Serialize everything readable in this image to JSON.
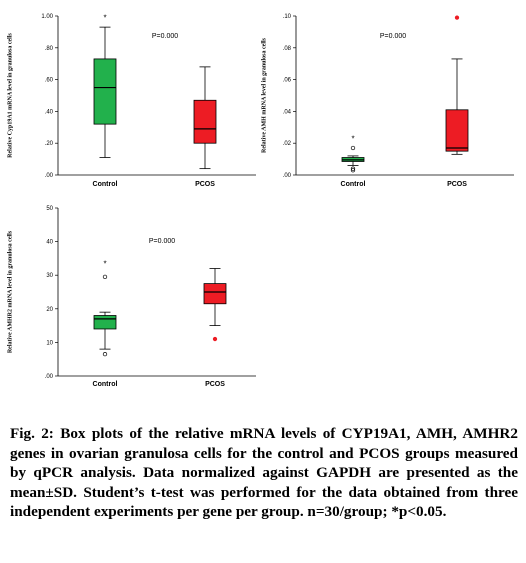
{
  "chart_data": [
    {
      "type": "box",
      "ylabel": "Relative Cyp19A1 mRNA level in granulosa cells",
      "ylim": [
        0,
        1.0
      ],
      "yticks": [
        0.0,
        0.2,
        0.4,
        0.6,
        0.8,
        1.0
      ],
      "ytick_labels": [
        ".00",
        ".20",
        ".40",
        ".60",
        ".80",
        "1.00"
      ],
      "annotation": "P=0.000",
      "categories": [
        "Control",
        "PCOS"
      ],
      "boxes": [
        {
          "name": "Control",
          "color": "#22b14c",
          "whisker_low": 0.11,
          "q1": 0.32,
          "median": 0.55,
          "q3": 0.73,
          "whisker_high": 0.93,
          "outliers": [],
          "extremes": [
            0.99
          ]
        },
        {
          "name": "PCOS",
          "color": "#ed1c24",
          "whisker_low": 0.04,
          "q1": 0.2,
          "median": 0.29,
          "q3": 0.47,
          "whisker_high": 0.68,
          "outliers": [],
          "extremes": []
        }
      ]
    },
    {
      "type": "box",
      "ylabel": "Relative AMH mRNA level in granulosa cells",
      "ylim": [
        0,
        0.1
      ],
      "yticks": [
        0.0,
        0.02,
        0.04,
        0.06,
        0.08,
        0.1
      ],
      "ytick_labels": [
        ".00",
        ".02",
        ".04",
        ".06",
        ".08",
        ".10"
      ],
      "annotation": "P=0.000",
      "categories": [
        "Control",
        "PCOS"
      ],
      "boxes": [
        {
          "name": "Control",
          "color": "#22b14c",
          "whisker_low": 0.006,
          "q1": 0.0085,
          "median": 0.0095,
          "q3": 0.011,
          "whisker_high": 0.012,
          "outliers": [
            0.017,
            0.004,
            0.003
          ],
          "extremes": [
            0.023
          ]
        },
        {
          "name": "PCOS",
          "color": "#ed1c24",
          "whisker_low": 0.013,
          "q1": 0.015,
          "median": 0.017,
          "q3": 0.041,
          "whisker_high": 0.073,
          "outliers": [
            0.099
          ],
          "extremes": []
        }
      ]
    },
    {
      "type": "box",
      "ylabel": "Relative AMHR2 mRNA level in granulosa cells",
      "ylim": [
        0,
        50
      ],
      "yticks": [
        0,
        10,
        20,
        30,
        40,
        50
      ],
      "ytick_labels": [
        ".00",
        "10",
        "20",
        "30",
        "40",
        "50"
      ],
      "annotation": "P=0.000",
      "categories": [
        "Control",
        "PCOS"
      ],
      "boxes": [
        {
          "name": "Control",
          "color": "#22b14c",
          "whisker_low": 8,
          "q1": 14,
          "median": 17,
          "q3": 18,
          "whisker_high": 19,
          "outliers": [
            6.5,
            29.5
          ],
          "extremes": [
            33.5
          ]
        },
        {
          "name": "PCOS",
          "color": "#ed1c24",
          "whisker_low": 15,
          "q1": 21.5,
          "median": 25,
          "q3": 27.5,
          "whisker_high": 32,
          "outliers": [
            11
          ],
          "extremes": []
        }
      ]
    }
  ],
  "caption": {
    "lead": "Fig. 2:",
    "text": "Box plots of the relative mRNA levels of CYP19A1, AMH, AMHR2 genes in ovarian granulosa cells for the control and PCOS groups measured by qPCR analysis. Data normalized against GAPDH are presented as the mean±SD. Student’s t-test was performed for the data obtained from three independent experiments per gene per group. n=30/group; *p<0.05."
  },
  "symbols": {
    "outlier": "o",
    "extreme": "*"
  }
}
